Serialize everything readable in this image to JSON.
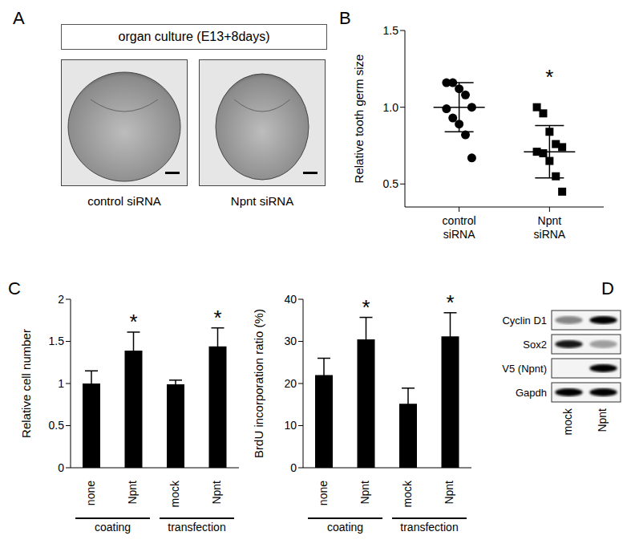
{
  "chart_data": [
    {
      "panel": "A",
      "type": "image",
      "title": "organ culture (E13+8days)",
      "captions": [
        "control siRNA",
        "Npnt siRNA"
      ]
    },
    {
      "panel": "B",
      "type": "scatter",
      "categories": [
        "control siRNA",
        "Npnt siRNA"
      ],
      "y_label": "Relative tooth germ size",
      "ylim": [
        0.35,
        1.5
      ],
      "yticks": [
        0.5,
        {
          "value": 1,
          "label": "1.0"
        },
        1.5
      ],
      "color": "#000000",
      "groups": [
        {
          "marker": "circle",
          "values": [
            1.16,
            1.16,
            1.12,
            1.08,
            1.0,
            0.99,
            0.93,
            0.89,
            0.82,
            0.67
          ],
          "mean": 1.0,
          "sd": 0.16
        },
        {
          "marker": "square",
          "values": [
            1.0,
            0.96,
            0.84,
            0.76,
            0.74,
            0.71,
            0.7,
            0.65,
            0.55,
            0.45
          ],
          "mean": 0.71,
          "sd": 0.17
        }
      ],
      "annotations": [
        {
          "text": "*",
          "category": 1
        }
      ]
    },
    {
      "panel": "C",
      "type": "bar",
      "categories": [
        "none",
        "Npnt",
        "mock",
        "Npnt"
      ],
      "groups": [
        {
          "label": "coating",
          "size": 2
        },
        {
          "label": "transfection",
          "size": 2
        }
      ],
      "y_label": "Relative cell number",
      "ylim": [
        0,
        2
      ],
      "yticks": [
        0,
        0.5,
        1,
        1.5,
        2
      ],
      "color": "#000000",
      "values": [
        1.0,
        1.39,
        0.99,
        1.44
      ],
      "errors": [
        0.15,
        0.22,
        0.05,
        0.22
      ],
      "annotations": [
        {
          "text": "*",
          "index": 1
        },
        {
          "text": "*",
          "index": 3
        }
      ]
    },
    {
      "type": "bar",
      "categories": [
        "none",
        "Npnt",
        "mock",
        "Npnt"
      ],
      "groups": [
        {
          "label": "coating",
          "size": 2
        },
        {
          "label": "transfection",
          "size": 2
        }
      ],
      "y_label": "BrdU incorporation ratio (%)",
      "ylim": [
        0,
        40
      ],
      "yticks": [
        0,
        10,
        20,
        30,
        40
      ],
      "color": "#000000",
      "values": [
        22,
        30.5,
        15.2,
        31.2
      ],
      "errors": [
        4,
        5.2,
        3.7,
        5.6
      ],
      "annotations": [
        {
          "text": "*",
          "index": 1
        },
        {
          "text": "*",
          "index": 3
        }
      ]
    },
    {
      "panel": "D",
      "type": "blot",
      "rows": [
        "Cyclin D1",
        "Sox2",
        "V5 (Npnt)",
        "Gapdh"
      ],
      "lanes": [
        "mock",
        "Npnt"
      ],
      "intensities": [
        [
          0.45,
          1.0
        ],
        [
          0.9,
          0.35
        ],
        [
          0.0,
          1.0
        ],
        [
          1.0,
          1.0
        ]
      ]
    }
  ]
}
